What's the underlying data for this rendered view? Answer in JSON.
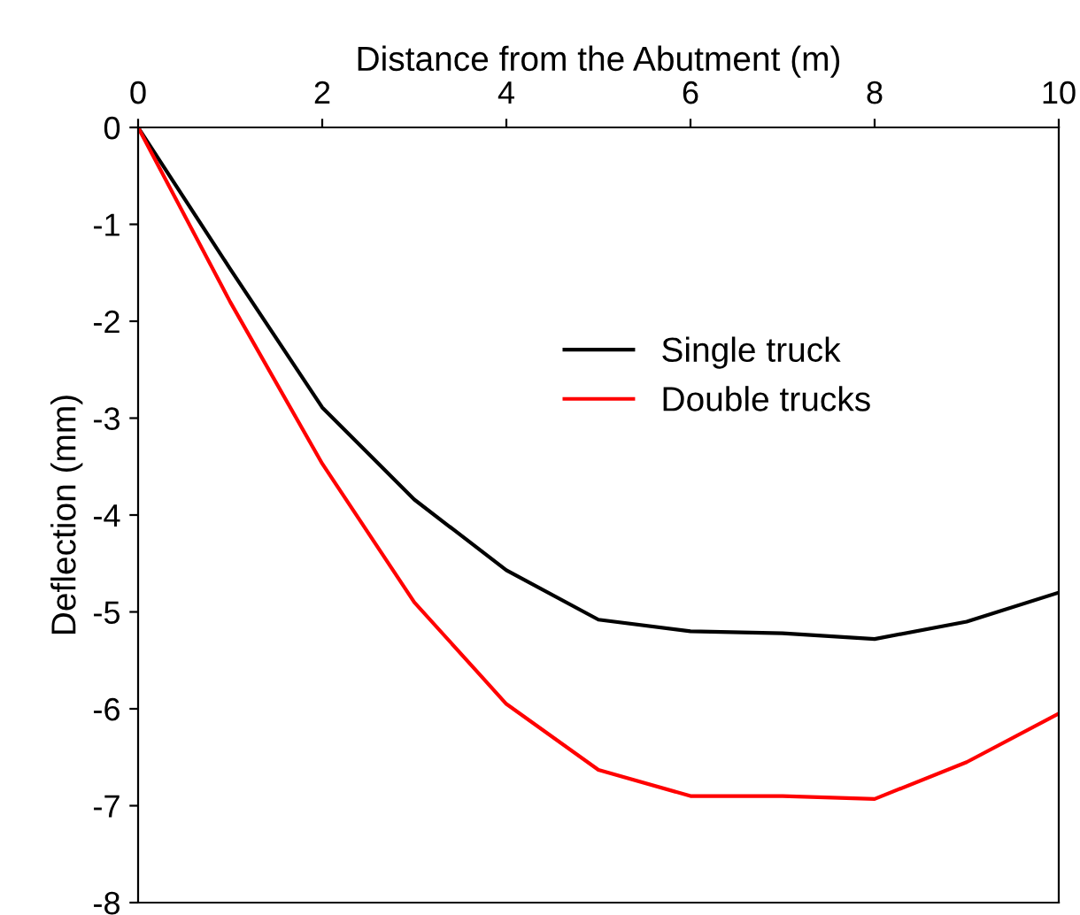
{
  "chart_data": {
    "type": "line",
    "xlabel": "Distance from the Abutment (m)",
    "ylabel": "Deflection (mm)",
    "x": [
      0,
      1,
      2,
      3,
      4,
      5,
      6,
      7,
      8,
      9,
      10
    ],
    "series": [
      {
        "name": "Single truck",
        "color": "#000000",
        "values": [
          0,
          -1.46,
          -2.89,
          -3.84,
          -4.57,
          -5.08,
          -5.2,
          -5.22,
          -5.28,
          -5.1,
          -4.8
        ]
      },
      {
        "name": "Double trucks",
        "color": "#ff0000",
        "values": [
          0,
          -1.8,
          -3.47,
          -4.9,
          -5.95,
          -6.63,
          -6.9,
          -6.9,
          -6.93,
          -6.55,
          -6.05
        ]
      }
    ],
    "xlim": [
      0,
      10
    ],
    "xticks": [
      0,
      2,
      4,
      6,
      8,
      10
    ],
    "ylim": [
      -8,
      0
    ],
    "yticks": [
      -8,
      -7,
      -6,
      -5,
      -4,
      -3,
      -2,
      -1,
      0
    ],
    "grid": false,
    "legend": "top right",
    "marker": "none",
    "line_style": "solid"
  }
}
